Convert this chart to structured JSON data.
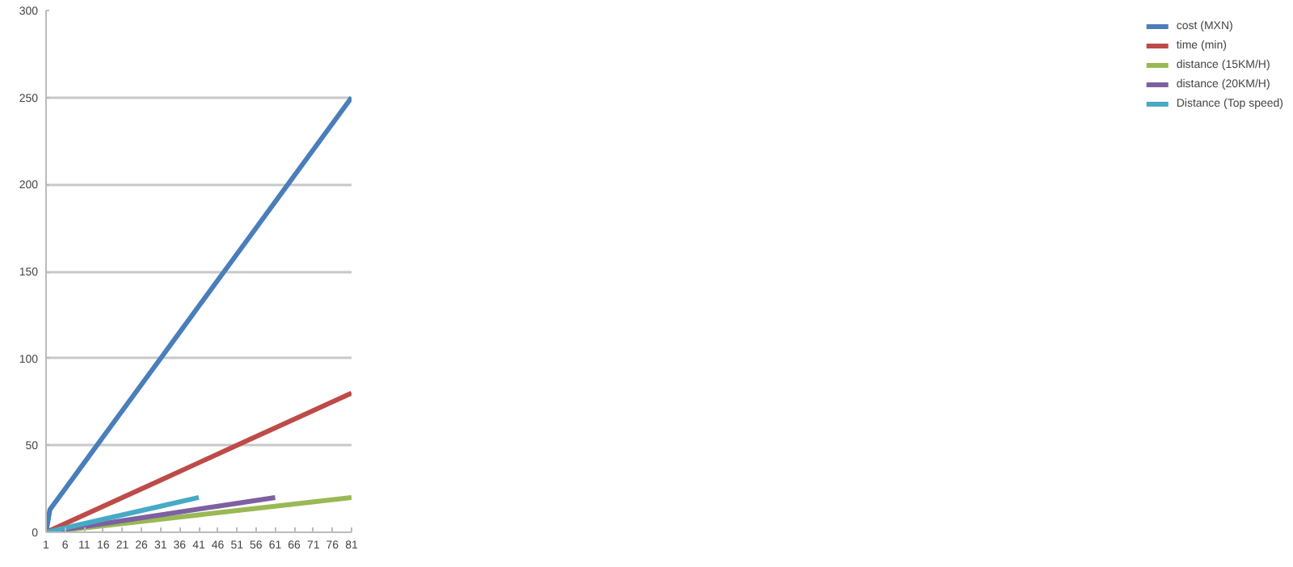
{
  "chart_data": {
    "type": "line",
    "xlim": [
      1,
      81
    ],
    "xticks": [
      1,
      6,
      11,
      16,
      21,
      26,
      31,
      36,
      41,
      46,
      51,
      56,
      61,
      66,
      71,
      76,
      81
    ],
    "ylim": [
      0,
      300
    ],
    "yticks": [
      0,
      50,
      100,
      150,
      200,
      250,
      300
    ],
    "grid": "y",
    "legend": "right",
    "marker": "none",
    "line_style": "solid",
    "series": [
      {
        "name": "cost (MXN)",
        "color": "#4a7ebb",
        "x": [
          1,
          2,
          6,
          11,
          16,
          21,
          26,
          31,
          36,
          41,
          46,
          51,
          56,
          61,
          66,
          71,
          76,
          81
        ],
        "values": [
          0,
          13,
          25,
          40,
          55,
          70,
          85,
          100,
          115,
          130,
          145,
          160,
          175,
          190,
          205,
          220,
          235,
          250
        ]
      },
      {
        "name": "time (min)",
        "color": "#be4b48",
        "x": [
          1,
          11,
          21,
          31,
          41,
          51,
          61,
          71,
          81
        ],
        "values": [
          0,
          10,
          20,
          30,
          40,
          50,
          60,
          70,
          80
        ]
      },
      {
        "name": "distance (15KM/H)",
        "color": "#98b954",
        "x": [
          1,
          21,
          41,
          61,
          81
        ],
        "values": [
          0,
          5,
          10,
          15,
          20
        ]
      },
      {
        "name": "distance (20KM/H)",
        "color": "#7d60a0",
        "x": [
          1,
          16,
          31,
          46,
          61
        ],
        "values": [
          0,
          5,
          10,
          15,
          20
        ]
      },
      {
        "name": "Distance (Top speed)",
        "color": "#46aac5",
        "x": [
          1,
          11,
          21,
          31,
          41
        ],
        "values": [
          0,
          5,
          10,
          15,
          20
        ]
      }
    ]
  }
}
